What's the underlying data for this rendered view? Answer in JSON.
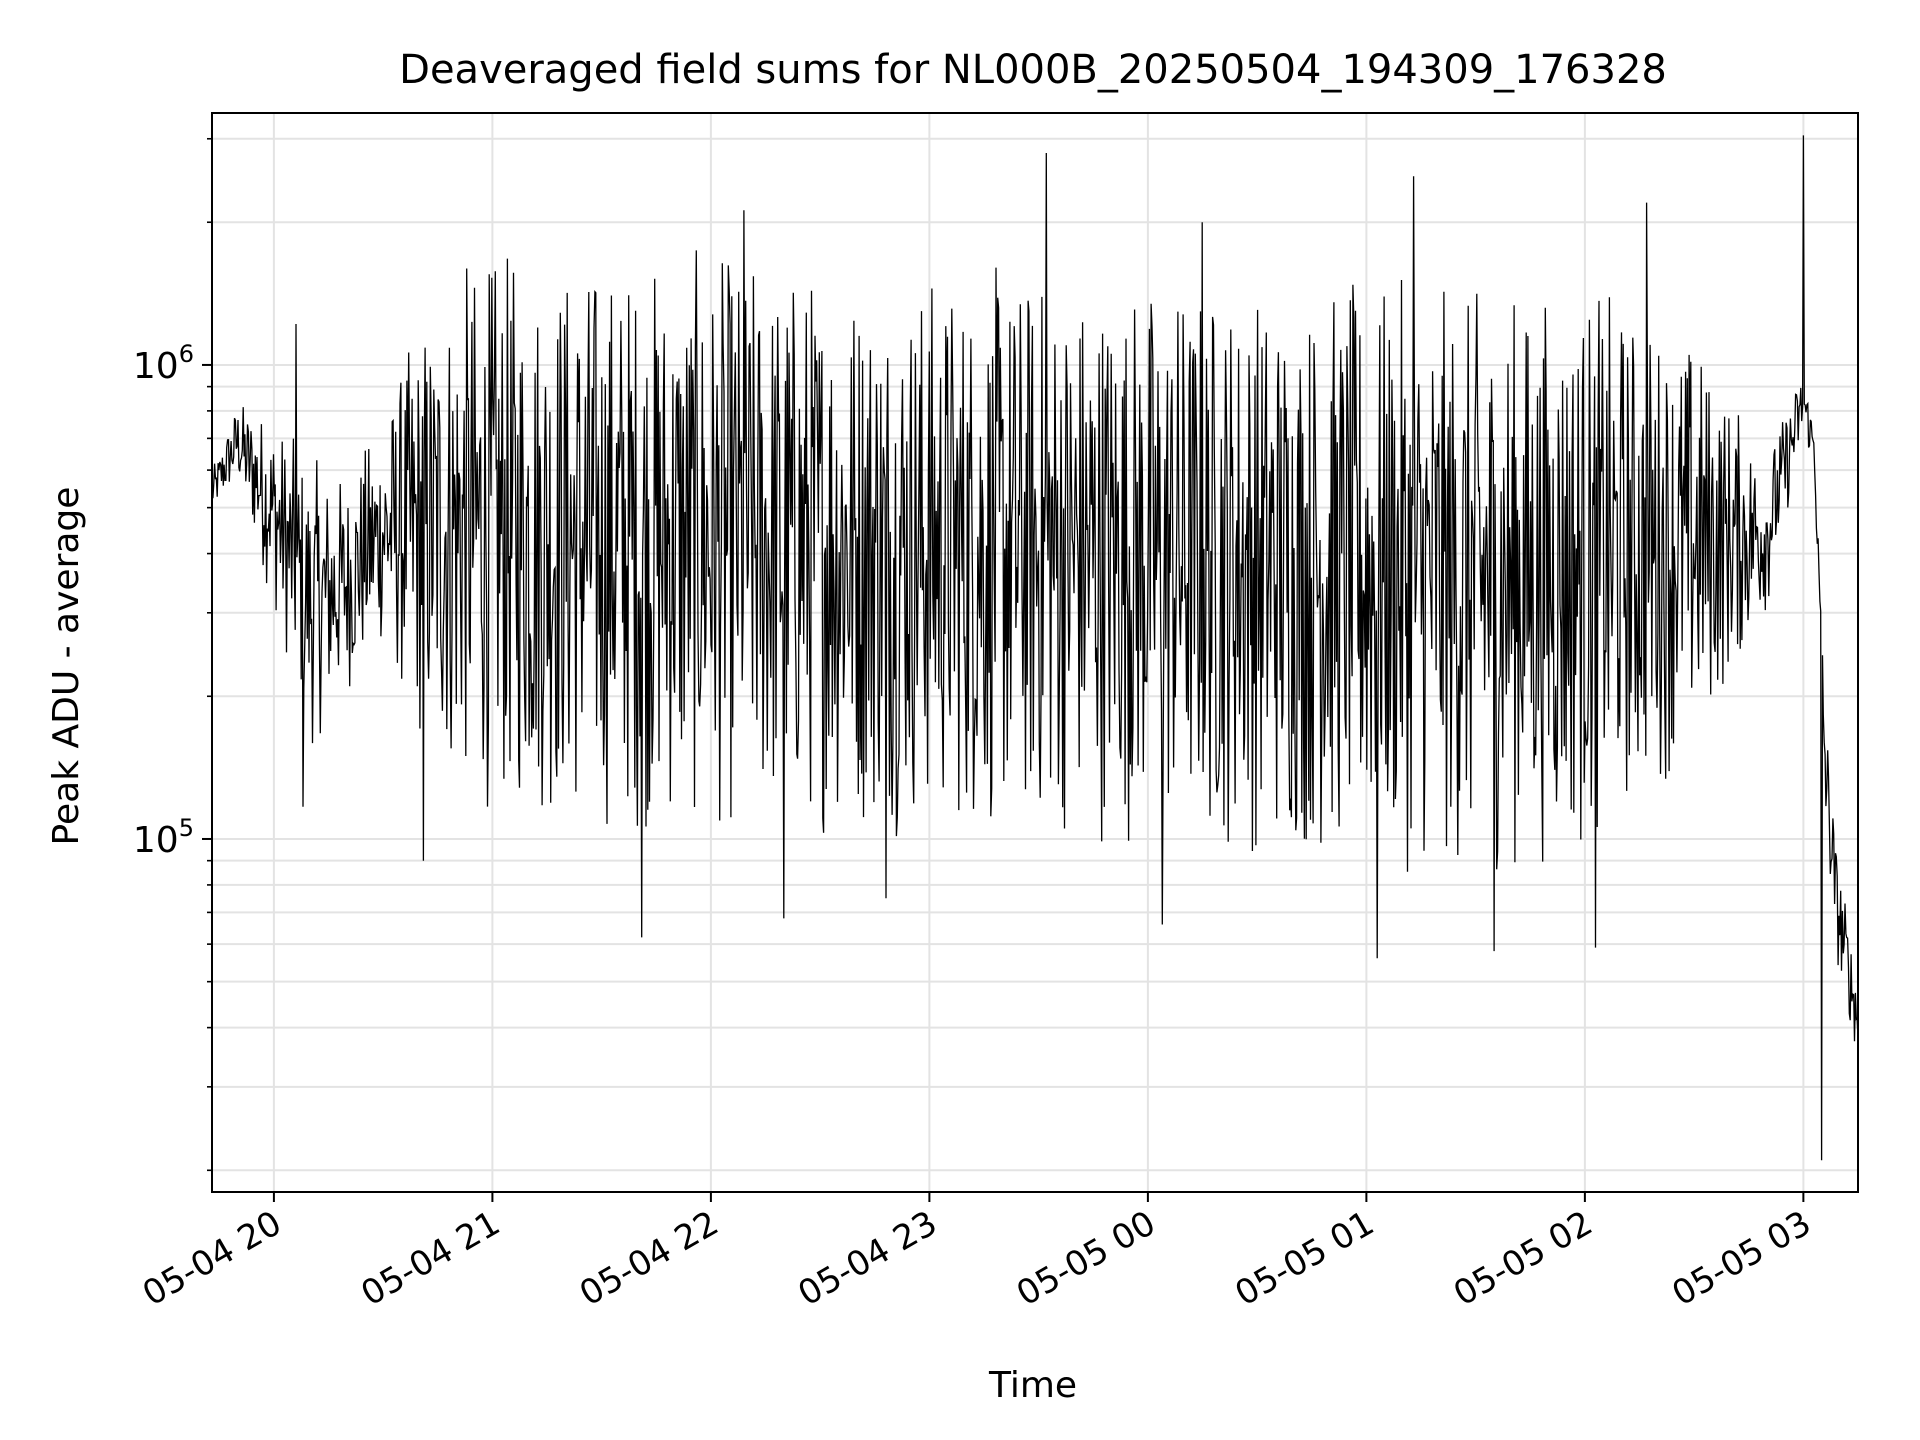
{
  "chart_data": {
    "type": "line",
    "title": "Deaveraged field sums for NL000B_20250504_194309_176328",
    "xlabel": "Time",
    "ylabel": "Peak ADU - average",
    "y_scale": "log",
    "grid": true,
    "line_color": "#000000",
    "xlim": [
      "2025-05-04 19:43",
      "2025-05-05 03:15"
    ],
    "ylim": [
      18000,
      3400000
    ],
    "x_ticks": [
      {
        "t": "2025-05-04 20:00",
        "label": "05-04 20"
      },
      {
        "t": "2025-05-04 21:00",
        "label": "05-04 21"
      },
      {
        "t": "2025-05-04 22:00",
        "label": "05-04 22"
      },
      {
        "t": "2025-05-04 23:00",
        "label": "05-04 23"
      },
      {
        "t": "2025-05-05 00:00",
        "label": "05-05 00"
      },
      {
        "t": "2025-05-05 01:00",
        "label": "05-05 01"
      },
      {
        "t": "2025-05-05 02:00",
        "label": "05-05 02"
      },
      {
        "t": "2025-05-05 03:00",
        "label": "05-05 03"
      }
    ],
    "y_ticks": [
      {
        "value": 100000,
        "base": "10",
        "exp": "5"
      },
      {
        "value": 1000000,
        "base": "10",
        "exp": "6"
      }
    ],
    "series": [
      {
        "envelope": [
          {
            "t": "2025-05-04 19:43",
            "low": 480000,
            "high": 600000
          },
          {
            "t": "2025-05-04 19:50",
            "low": 560000,
            "high": 850000
          },
          {
            "t": "2025-05-04 20:00",
            "low": 300000,
            "high": 800000
          },
          {
            "t": "2025-05-04 20:10",
            "low": 150000,
            "high": 650000
          },
          {
            "t": "2025-05-04 20:20",
            "low": 200000,
            "high": 600000
          },
          {
            "t": "2025-05-04 20:30",
            "low": 250000,
            "high": 800000
          },
          {
            "t": "2025-05-04 20:40",
            "low": 150000,
            "high": 1300000
          },
          {
            "t": "2025-05-04 20:50",
            "low": 120000,
            "high": 1700000
          },
          {
            "t": "2025-05-04 21:00",
            "low": 110000,
            "high": 1800000
          },
          {
            "t": "2025-05-04 21:30",
            "low": 100000,
            "high": 1800000
          },
          {
            "t": "2025-05-04 22:00",
            "low": 100000,
            "high": 1800000
          },
          {
            "t": "2025-05-04 23:00",
            "low": 100000,
            "high": 1700000
          },
          {
            "t": "2025-05-05 00:00",
            "low": 95000,
            "high": 1650000
          },
          {
            "t": "2025-05-05 01:00",
            "low": 85000,
            "high": 1550000
          },
          {
            "t": "2025-05-05 01:30",
            "low": 80000,
            "high": 1500000
          },
          {
            "t": "2025-05-05 02:00",
            "low": 90000,
            "high": 1550000
          },
          {
            "t": "2025-05-05 02:30",
            "low": 150000,
            "high": 1200000
          },
          {
            "t": "2025-05-05 02:50",
            "low": 300000,
            "high": 650000
          },
          {
            "t": "2025-05-05 03:00",
            "low": 700000,
            "high": 1000000
          },
          {
            "t": "2025-05-05 03:03",
            "low": 600000,
            "high": 750000
          },
          {
            "t": "2025-05-05 03:06",
            "low": 100000,
            "high": 200000
          },
          {
            "t": "2025-05-05 03:09",
            "low": 55000,
            "high": 100000
          },
          {
            "t": "2025-05-05 03:15",
            "low": 34000,
            "high": 50000
          }
        ],
        "spikes": [
          {
            "t": "2025-05-04 20:06",
            "value": 1220000
          },
          {
            "t": "2025-05-04 20:08",
            "value": 117000
          },
          {
            "t": "2025-05-04 20:41",
            "value": 90000
          },
          {
            "t": "2025-05-04 21:41",
            "value": 62000
          },
          {
            "t": "2025-05-04 22:09",
            "value": 2120000
          },
          {
            "t": "2025-05-04 22:20",
            "value": 68000
          },
          {
            "t": "2025-05-04 22:48",
            "value": 75000
          },
          {
            "t": "2025-05-04 23:32",
            "value": 2800000
          },
          {
            "t": "2025-05-05 00:04",
            "value": 66000
          },
          {
            "t": "2025-05-05 00:15",
            "value": 2000000
          },
          {
            "t": "2025-05-05 01:03",
            "value": 56000
          },
          {
            "t": "2025-05-05 01:13",
            "value": 2500000
          },
          {
            "t": "2025-05-05 01:35",
            "value": 58000
          },
          {
            "t": "2025-05-05 02:03",
            "value": 59000
          },
          {
            "t": "2025-05-05 02:17",
            "value": 2200000
          },
          {
            "t": "2025-05-05 03:00",
            "value": 3050000
          },
          {
            "t": "2025-05-05 03:05",
            "value": 21000
          }
        ]
      }
    ]
  }
}
